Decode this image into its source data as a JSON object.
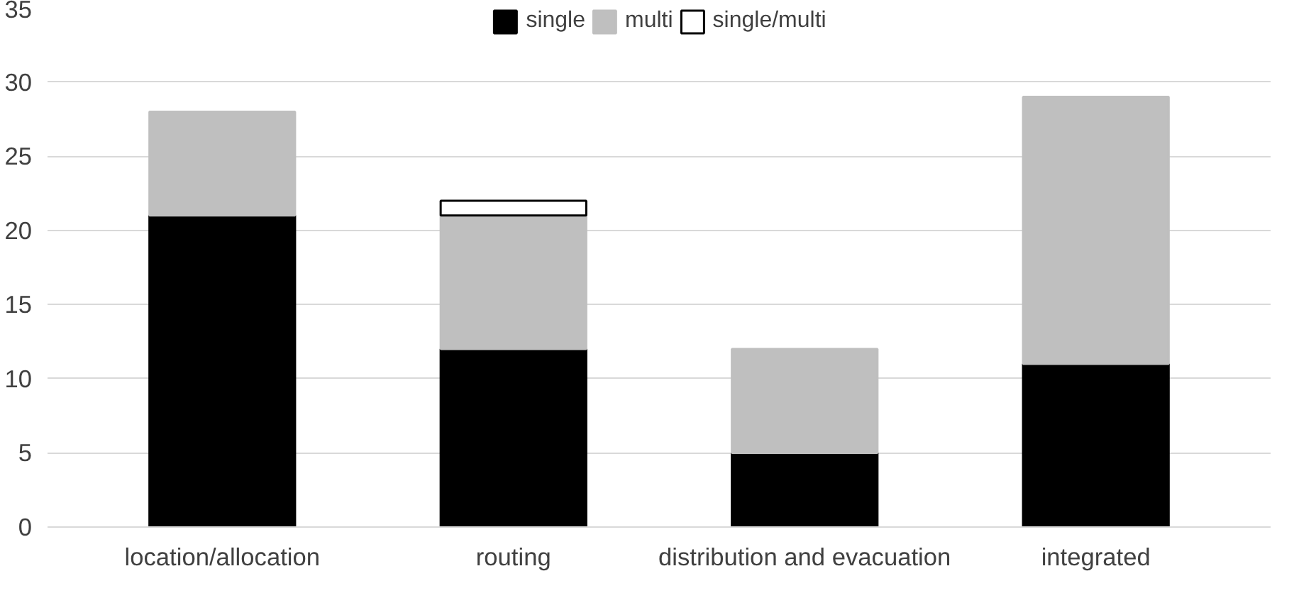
{
  "chart_data": {
    "type": "bar",
    "stacked": true,
    "categories": [
      "location/allocation",
      "routing",
      "distribution and evacuation",
      "integrated"
    ],
    "series": [
      {
        "name": "single",
        "color": "#000000",
        "values": [
          21,
          12,
          5,
          11
        ]
      },
      {
        "name": "multi",
        "color": "#bfbfbf",
        "values": [
          7,
          9,
          7,
          18
        ]
      },
      {
        "name": "single/multi",
        "color": "#ffffff",
        "values": [
          null,
          1,
          null,
          null
        ]
      }
    ],
    "ylim": [
      0,
      35
    ],
    "yticks": [
      0,
      5,
      10,
      15,
      20,
      25,
      30,
      35
    ],
    "grid": "y",
    "legend": "top"
  }
}
